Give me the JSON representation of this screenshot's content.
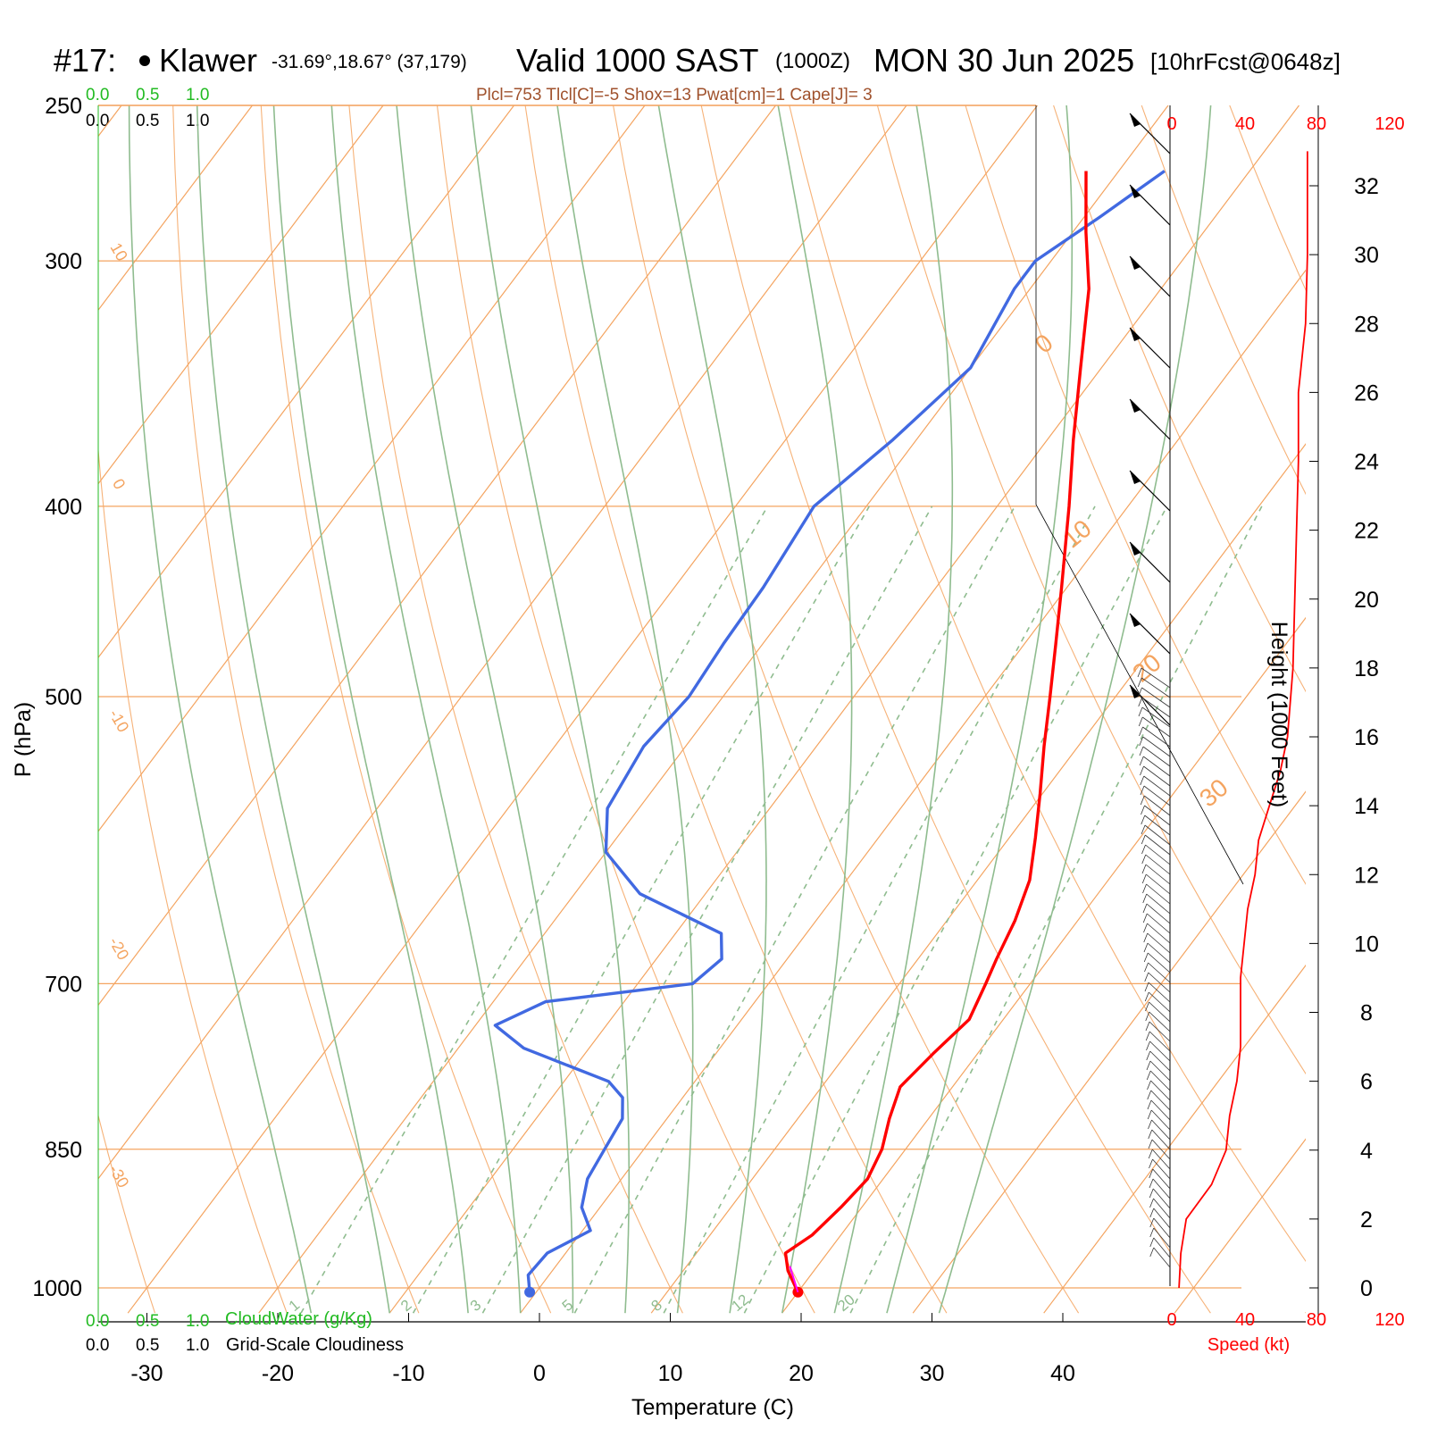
{
  "header": {
    "station_id": "#17:",
    "station_name": "Klawer",
    "coords": "-31.69°,18.67° (37,179)",
    "valid": "Valid 1000 SAST",
    "zulu": "(1000Z)",
    "date": "MON 30 Jun 2025",
    "forecast": "[10hrFcst@0648z]"
  },
  "indices_line": "Plcl=753 Tlcl[C]=-5 Shox=13 Pwat[cm]=1 Cape[J]= 3",
  "colors": {
    "temperature": "#ff0000",
    "dewpoint": "#4169e1",
    "isotherm": "#f4a460",
    "dry_adiabat": "#f4a460",
    "moist_adiabat": "#8fbc8f",
    "mixing_ratio": "#8fbc8f",
    "cloudwater": "#22bb22",
    "parcel": "#ff00ff",
    "wind_speed": "#ff0000"
  },
  "cloud_scales": {
    "cloudwater_ticks": [
      "0.0",
      "0.5",
      "1.0"
    ],
    "cloudwater_label": "CloudWater (g/Kg)",
    "cloudiness_ticks": [
      "0.0",
      "0.5",
      "1.0"
    ],
    "cloudiness_label": "Grid-Scale Cloudiness"
  },
  "chart_data": {
    "type": "skew-t",
    "xlabel": "Temperature (C)",
    "ylabel": "P (hPa)",
    "y2label": "Height (1000 Feet)",
    "x_ticks": [
      -30,
      -20,
      -10,
      0,
      10,
      20,
      30,
      40
    ],
    "p_ticks": [
      250,
      300,
      400,
      500,
      700,
      850,
      1000
    ],
    "p_range": [
      250,
      1030
    ],
    "height_ticks": [
      0,
      2,
      4,
      6,
      8,
      10,
      12,
      14,
      16,
      18,
      20,
      22,
      24,
      26,
      28,
      30,
      32
    ],
    "speed_axis": {
      "label": "Speed (kt)",
      "ticks": [
        "0",
        "40",
        "80",
        "120"
      ]
    },
    "isotherm_labels": [
      "10",
      "0",
      "-10",
      "-20",
      "-30",
      "0",
      "10",
      "20",
      "30"
    ],
    "mixing_ratio_labels": [
      "1",
      "2",
      "3",
      "5",
      "8",
      "12",
      "20"
    ],
    "mixing_ratio_values": [
      1,
      2,
      3,
      5,
      8,
      12,
      20
    ],
    "series": [
      {
        "name": "Temperature",
        "points": [
          [
            1005,
            20.0
          ],
          [
            980,
            18.0
          ],
          [
            960,
            16.8
          ],
          [
            940,
            17.8
          ],
          [
            910,
            18.4
          ],
          [
            880,
            18.8
          ],
          [
            850,
            18.2
          ],
          [
            820,
            17.0
          ],
          [
            790,
            16.0
          ],
          [
            760,
            16.6
          ],
          [
            730,
            17.4
          ],
          [
            700,
            16.6
          ],
          [
            680,
            16.0
          ],
          [
            650,
            15.2
          ],
          [
            620,
            14.0
          ],
          [
            590,
            12.0
          ],
          [
            560,
            9.8
          ],
          [
            530,
            7.4
          ],
          [
            500,
            5.0
          ],
          [
            470,
            2.4
          ],
          [
            440,
            -0.4
          ],
          [
            400,
            -4.5
          ],
          [
            370,
            -8.0
          ],
          [
            340,
            -11.6
          ],
          [
            310,
            -15.5
          ],
          [
            290,
            -19.0
          ],
          [
            270,
            -22.5
          ]
        ]
      },
      {
        "name": "Dewpoint",
        "points": [
          [
            1005,
            -0.5
          ],
          [
            985,
            -1.6
          ],
          [
            960,
            -1.4
          ],
          [
            935,
            0.6
          ],
          [
            910,
            -1.4
          ],
          [
            880,
            -2.6
          ],
          [
            850,
            -3.0
          ],
          [
            820,
            -3.4
          ],
          [
            800,
            -4.6
          ],
          [
            785,
            -6.6
          ],
          [
            755,
            -15.0
          ],
          [
            735,
            -18.5
          ],
          [
            715,
            -16.0
          ],
          [
            700,
            -5.8
          ],
          [
            680,
            -5.0
          ],
          [
            660,
            -6.5
          ],
          [
            630,
            -15.0
          ],
          [
            600,
            -20.0
          ],
          [
            570,
            -22.4
          ],
          [
            530,
            -23.2
          ],
          [
            500,
            -22.6
          ],
          [
            470,
            -23.0
          ],
          [
            440,
            -23.2
          ],
          [
            400,
            -24.0
          ],
          [
            370,
            -21.8
          ],
          [
            340,
            -20.0
          ],
          [
            310,
            -21.2
          ],
          [
            300,
            -21.2
          ],
          [
            285,
            -18.8
          ],
          [
            270,
            -16.5
          ]
        ]
      },
      {
        "name": "Parcel",
        "points": [
          [
            1005,
            20.0
          ],
          [
            975,
            17.9
          ]
        ]
      },
      {
        "name": "Wind Speed",
        "points": [
          [
            0.0,
            4
          ],
          [
            1.0,
            5
          ],
          [
            2.0,
            8
          ],
          [
            3.0,
            22
          ],
          [
            4.0,
            30
          ],
          [
            5.0,
            32
          ],
          [
            6.0,
            36
          ],
          [
            7.0,
            38
          ],
          [
            8.0,
            38
          ],
          [
            9.0,
            38
          ],
          [
            10.0,
            40
          ],
          [
            11.0,
            42
          ],
          [
            12.0,
            46
          ],
          [
            13.0,
            48
          ],
          [
            14.0,
            54
          ],
          [
            15.0,
            60
          ],
          [
            16.0,
            64
          ],
          [
            18.0,
            67
          ],
          [
            20.0,
            68
          ],
          [
            22.0,
            69
          ],
          [
            24.0,
            70
          ],
          [
            26.0,
            70
          ],
          [
            27.0,
            72
          ],
          [
            28.0,
            74
          ],
          [
            30.0,
            75
          ],
          [
            32.0,
            75
          ],
          [
            33.0,
            75
          ]
        ]
      }
    ]
  }
}
